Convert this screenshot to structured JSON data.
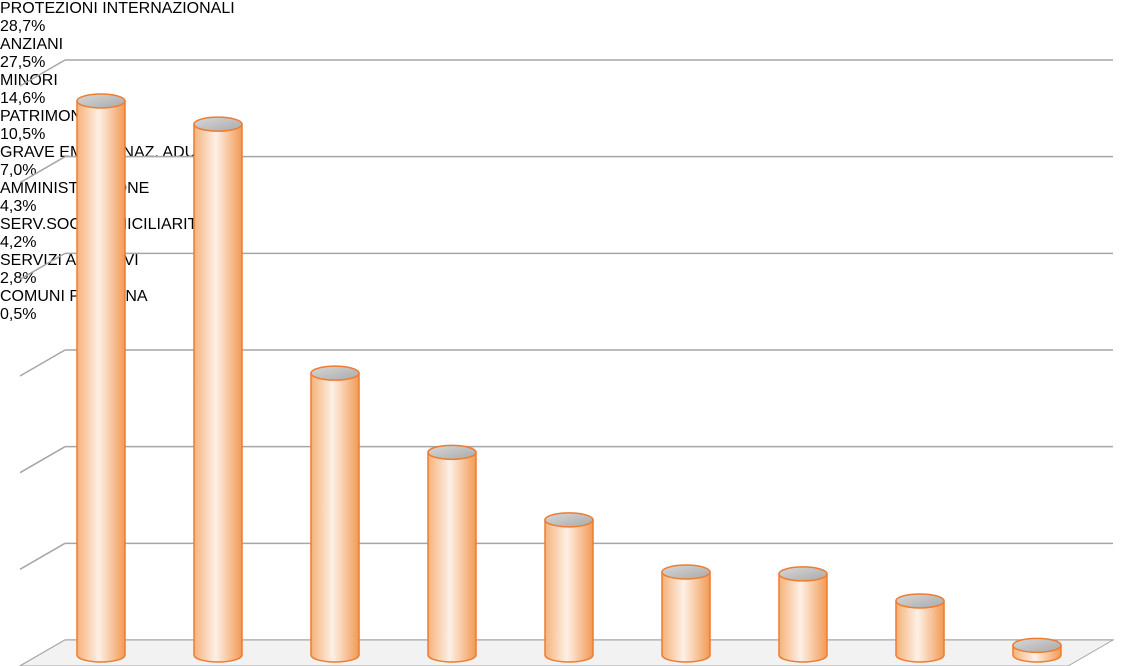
{
  "chart_data": {
    "type": "cylinder-bar",
    "categories": [
      "PROTEZIONI INTERNAZIONALI",
      "ANZIANI",
      "MINORI",
      "PATRIMONIO",
      "GRAVE EMARGINAZ. ADULTA",
      "AMMINISTRAZIONE",
      "SERV.SOC. DOMICILIARITA'",
      "SERVIZI ABITATIVI",
      "COMUNI PERSONA"
    ],
    "values": [
      28.7,
      27.5,
      14.6,
      10.5,
      7.0,
      4.3,
      4.2,
      2.8,
      0.5
    ],
    "value_labels": [
      "28,7%",
      "27,5%",
      "14,6%",
      "10,5%",
      "7,0%",
      "4,3%",
      "4,2%",
      "2,8%",
      "0,5%"
    ],
    "color": "#f4a460",
    "ylim": [
      0,
      30
    ],
    "yticks": [
      0,
      5,
      10,
      15,
      20,
      25,
      30
    ],
    "grid": true
  }
}
